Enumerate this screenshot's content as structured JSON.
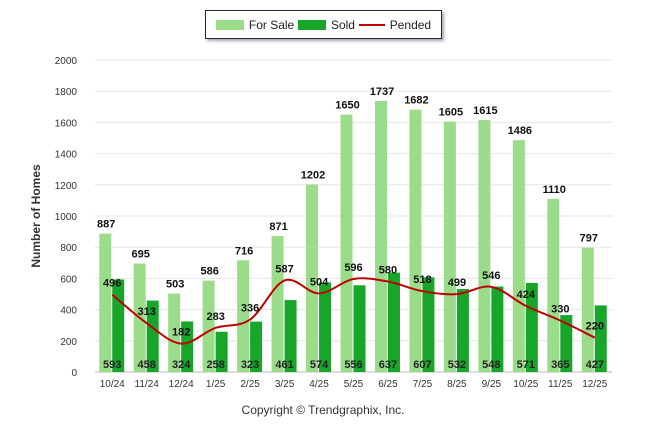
{
  "chart_data": {
    "type": "bar",
    "ylabel": "Number of Homes",
    "ylim": [
      0,
      2000
    ],
    "yticks": [
      0,
      200,
      400,
      600,
      800,
      1000,
      1200,
      1400,
      1600,
      1800,
      2000
    ],
    "categories": [
      "10/24",
      "11/24",
      "12/24",
      "1/25",
      "2/25",
      "3/25",
      "4/25",
      "5/25",
      "6/25",
      "7/25",
      "8/25",
      "9/25",
      "10/25",
      "11/25",
      "12/25"
    ],
    "series": [
      {
        "name": "For Sale",
        "kind": "bar",
        "color": "#9bdc8a",
        "values": [
          887,
          695,
          503,
          586,
          716,
          871,
          1202,
          1650,
          1737,
          1682,
          1605,
          1615,
          1486,
          1110,
          797
        ]
      },
      {
        "name": "Sold",
        "kind": "bar",
        "color": "#17a52a",
        "values": [
          593,
          458,
          324,
          258,
          323,
          461,
          574,
          556,
          637,
          607,
          532,
          548,
          571,
          365,
          427
        ]
      },
      {
        "name": "Pended",
        "kind": "line",
        "color": "#c00000",
        "values": [
          496,
          313,
          182,
          283,
          336,
          587,
          504,
          596,
          580,
          518,
          499,
          546,
          424,
          330,
          220
        ]
      }
    ],
    "legend_position": "top-center",
    "grid": true
  },
  "legend": [
    {
      "label": "For Sale",
      "color": "#9bdc8a",
      "kind": "bar"
    },
    {
      "label": "Sold",
      "color": "#17a52a",
      "kind": "bar"
    },
    {
      "label": "Pended",
      "color": "#c00000",
      "kind": "line"
    }
  ],
  "footer": "Copyright © Trendgraphix, Inc."
}
